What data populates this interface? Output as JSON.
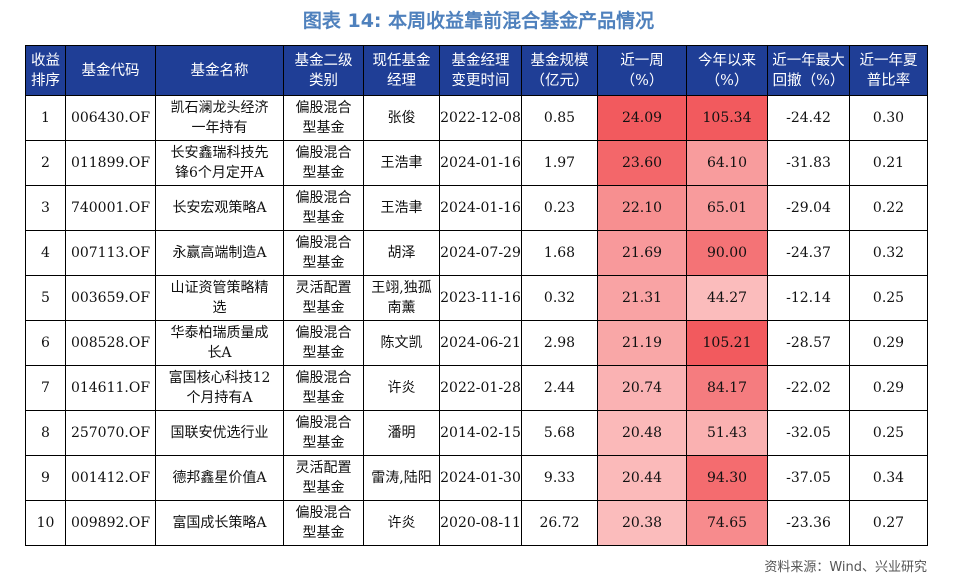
{
  "title": "图表 14: 本周收益靠前混合基金产品情况",
  "headers": [
    "收益\n排序",
    "基金代码",
    "基金名称",
    "基金二级\n类别",
    "现任基金\n经理",
    "基金经理\n变更时间",
    "基金规模\n（亿元）",
    "近一周\n（%）",
    "今年以来\n（%）",
    "近一年最大\n回撤（%）",
    "近一年夏\n普比率"
  ],
  "rows": [
    {
      "rank": "1",
      "code": "006430.OF",
      "name": "凯石澜龙头经济\n一年持有",
      "category": "偏股混合\n型基金",
      "manager": "张俊",
      "change_date": "2022-12-08",
      "size": "0.85",
      "week": "24.09",
      "ytd": "105.34",
      "drawdown": "-24.42",
      "sharpe": "0.30"
    },
    {
      "rank": "2",
      "code": "011899.OF",
      "name": "长安鑫瑞科技先\n锋6个月定开A",
      "category": "偏股混合\n型基金",
      "manager": "王浩聿",
      "change_date": "2024-01-16",
      "size": "1.97",
      "week": "23.60",
      "ytd": "64.10",
      "drawdown": "-31.83",
      "sharpe": "0.21"
    },
    {
      "rank": "3",
      "code": "740001.OF",
      "name": "长安宏观策略A",
      "category": "偏股混合\n型基金",
      "manager": "王浩聿",
      "change_date": "2024-01-16",
      "size": "0.23",
      "week": "22.10",
      "ytd": "65.01",
      "drawdown": "-29.04",
      "sharpe": "0.22"
    },
    {
      "rank": "4",
      "code": "007113.OF",
      "name": "永赢高端制造A",
      "category": "偏股混合\n型基金",
      "manager": "胡泽",
      "change_date": "2024-07-29",
      "size": "1.68",
      "week": "21.69",
      "ytd": "90.00",
      "drawdown": "-24.37",
      "sharpe": "0.32"
    },
    {
      "rank": "5",
      "code": "003659.OF",
      "name": "山证资管策略精\n选",
      "category": "灵活配置\n型基金",
      "manager": "王翊,独孤\n南薰",
      "change_date": "2023-11-16",
      "size": "0.32",
      "week": "21.31",
      "ytd": "44.27",
      "drawdown": "-12.14",
      "sharpe": "0.25"
    },
    {
      "rank": "6",
      "code": "008528.OF",
      "name": "华泰柏瑞质量成\n长A",
      "category": "偏股混合\n型基金",
      "manager": "陈文凯",
      "change_date": "2024-06-21",
      "size": "2.98",
      "week": "21.19",
      "ytd": "105.21",
      "drawdown": "-28.57",
      "sharpe": "0.29"
    },
    {
      "rank": "7",
      "code": "014611.OF",
      "name": "富国核心科技12\n个月持有A",
      "category": "偏股混合\n型基金",
      "manager": "许炎",
      "change_date": "2022-01-28",
      "size": "2.44",
      "week": "20.74",
      "ytd": "84.17",
      "drawdown": "-22.02",
      "sharpe": "0.29"
    },
    {
      "rank": "8",
      "code": "257070.OF",
      "name": "国联安优选行业",
      "category": "偏股混合\n型基金",
      "manager": "潘明",
      "change_date": "2014-02-15",
      "size": "5.68",
      "week": "20.48",
      "ytd": "51.43",
      "drawdown": "-32.05",
      "sharpe": "0.25"
    },
    {
      "rank": "9",
      "code": "001412.OF",
      "name": "德邦鑫星价值A",
      "category": "灵活配置\n型基金",
      "manager": "雷涛,陆阳",
      "change_date": "2024-01-30",
      "size": "9.33",
      "week": "20.44",
      "ytd": "94.30",
      "drawdown": "-37.05",
      "sharpe": "0.34"
    },
    {
      "rank": "10",
      "code": "009892.OF",
      "name": "富国成长策略A",
      "category": "偏股混合\n型基金",
      "manager": "许炎",
      "change_date": "2020-08-11",
      "size": "26.72",
      "week": "20.38",
      "ytd": "74.65",
      "drawdown": "-23.36",
      "sharpe": "0.27"
    }
  ],
  "colors": {
    "header_bg": "#1f3e96",
    "heat_high": "#f25a5e",
    "heat_low": "#fbbcbc",
    "title": "#4f81bd"
  },
  "source": "资料来源：Wind、兴业研究"
}
